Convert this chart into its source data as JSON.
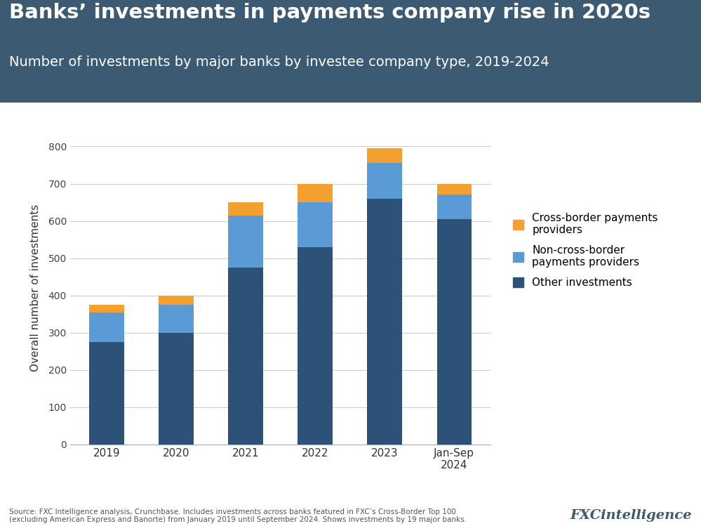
{
  "categories": [
    "2019",
    "2020",
    "2021",
    "2022",
    "2023",
    "Jan-Sep\n2024"
  ],
  "other_investments": [
    275,
    300,
    475,
    530,
    660,
    605
  ],
  "non_cross_border": [
    80,
    75,
    140,
    120,
    95,
    65
  ],
  "cross_border": [
    20,
    25,
    35,
    50,
    40,
    30
  ],
  "colors": {
    "other": "#2d5277",
    "non_cross_border": "#5b9bd5",
    "cross_border": "#f4a030"
  },
  "title": "Banks’ investments in payments company rise in 2020s",
  "subtitle": "Number of investments by major banks by investee company type, 2019-2024",
  "ylabel": "Overall number of investments",
  "ylim": [
    0,
    840
  ],
  "yticks": [
    0,
    100,
    200,
    300,
    400,
    500,
    600,
    700,
    800
  ],
  "legend_labels": [
    "Cross-border payments\nproviders",
    "Non-cross-border\npayments providers",
    "Other investments"
  ],
  "source_text": "Source: FXC Intelligence analysis, Crunchbase. Includes investments across banks featured in FXC’s Cross-Border Top 100\n(excluding American Express and Banorte) from January 2019 until September 2024. Shows investments by 19 major banks.",
  "header_bg_color": "#3d5a73",
  "header_text_color": "#ffffff",
  "plot_bg_color": "#ffffff",
  "grid_color": "#cccccc",
  "bar_width": 0.5
}
